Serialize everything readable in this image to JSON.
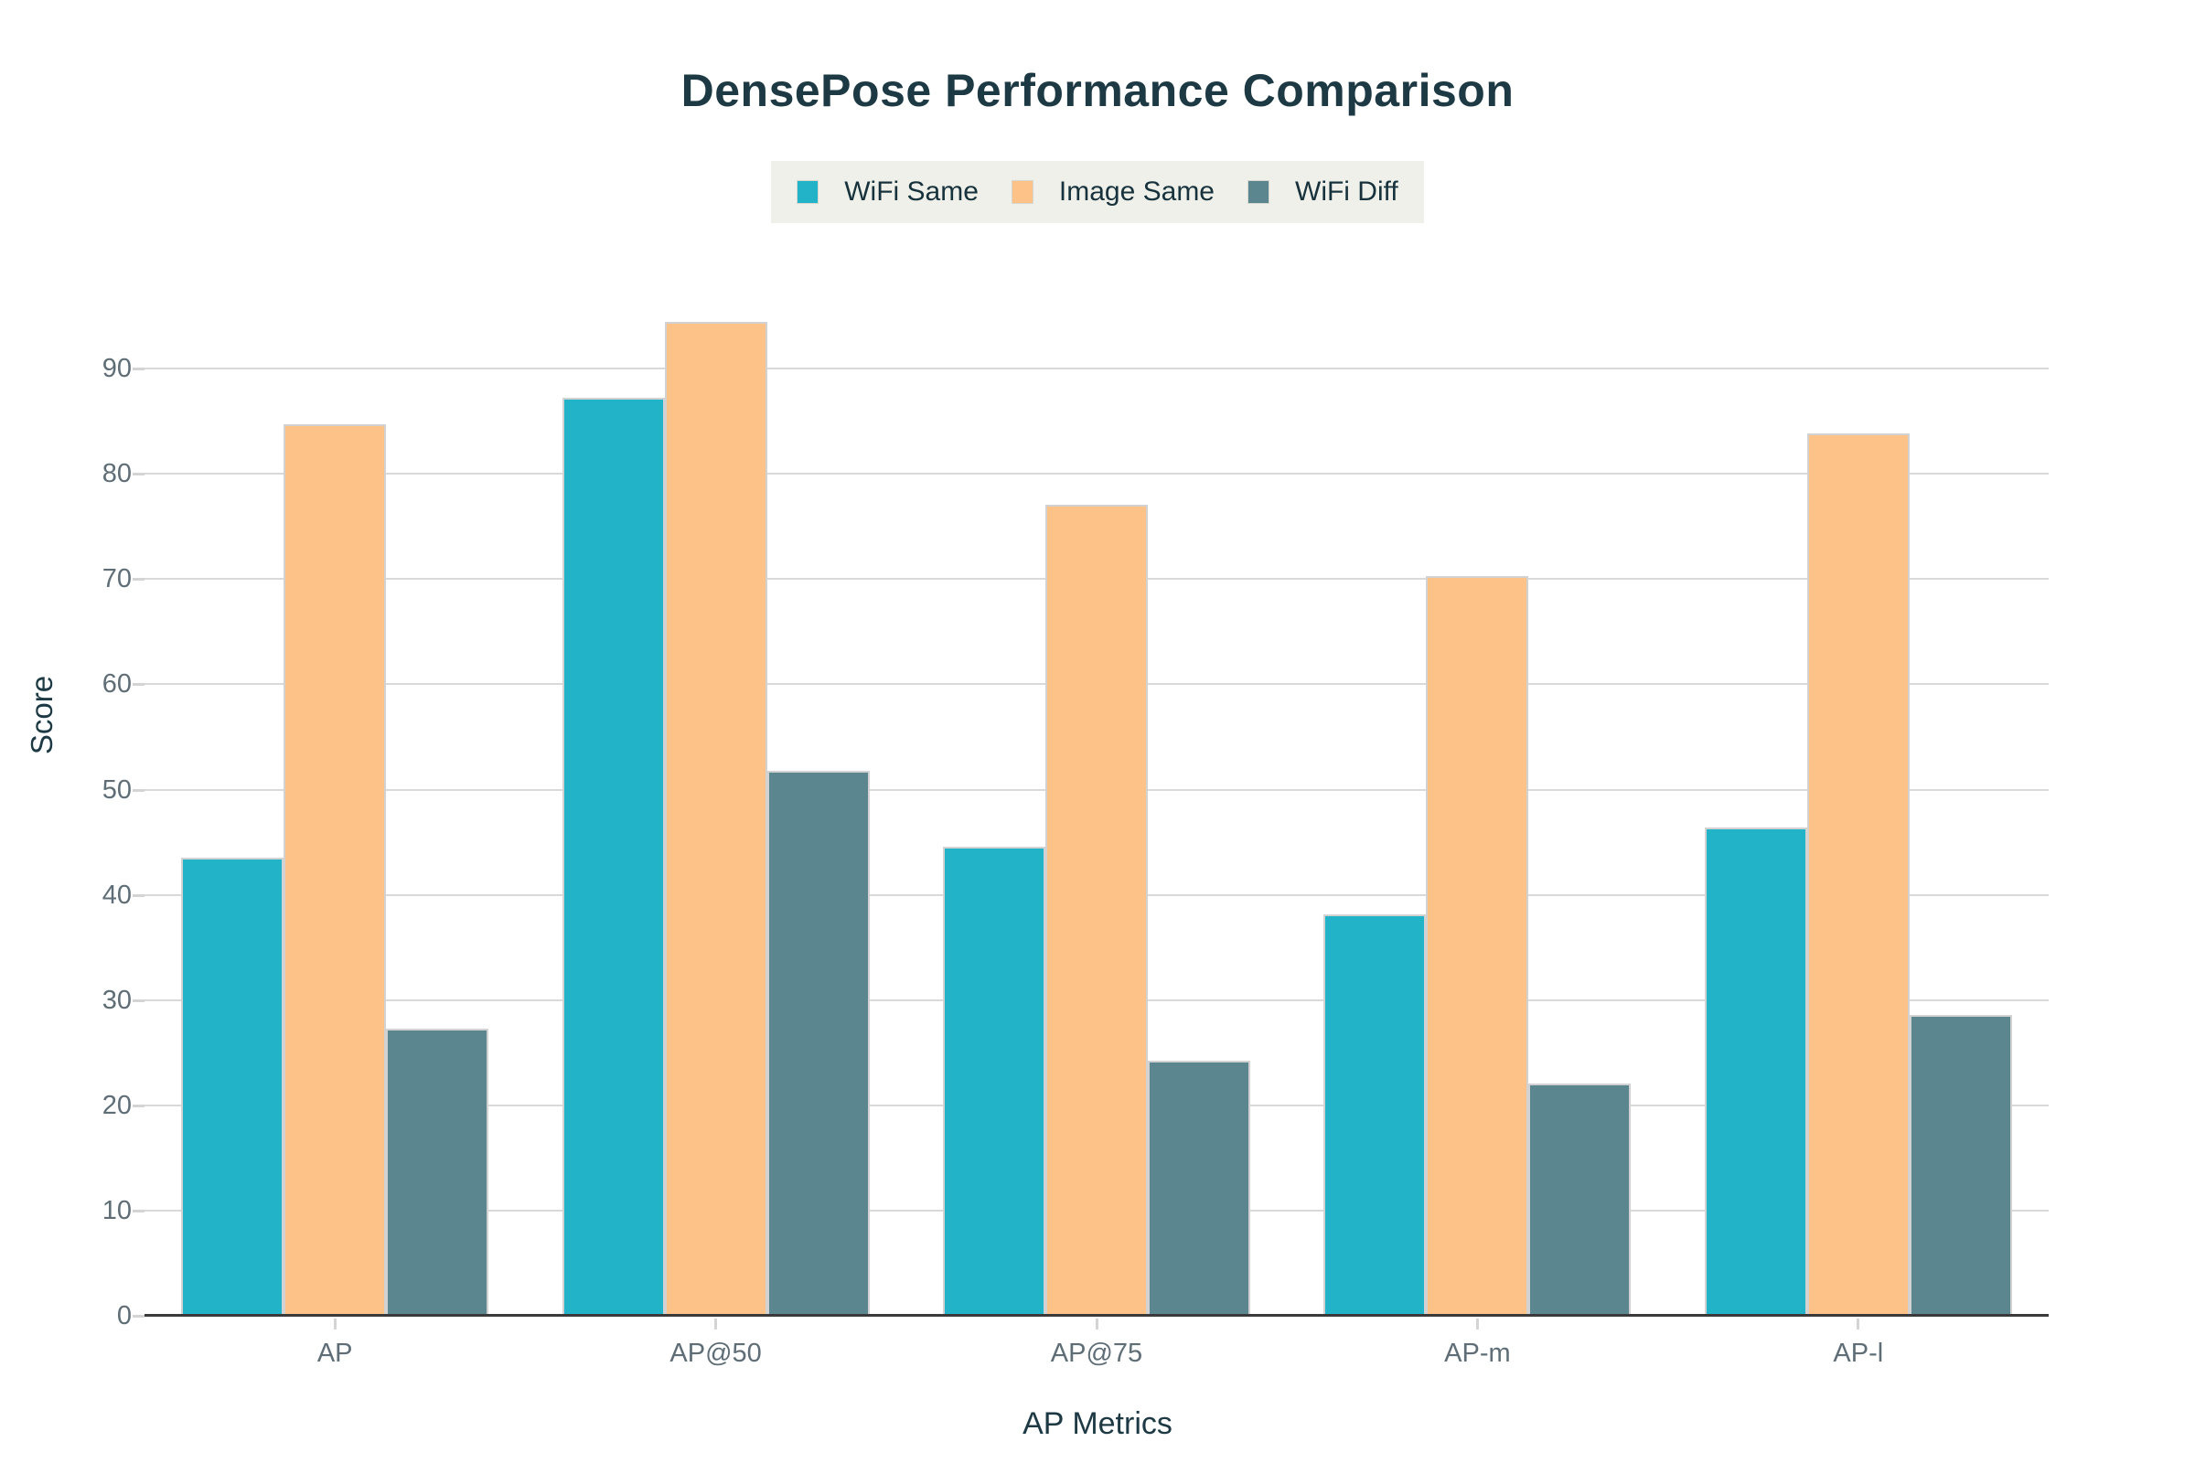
{
  "title": "DensePose Performance Comparison",
  "axes": {
    "x_title": "AP Metrics",
    "y_title": "Score"
  },
  "legend": {
    "items": [
      "WiFi Same",
      "Image Same",
      "WiFi Diff"
    ]
  },
  "colors": {
    "wifi_same": "#22b3c9",
    "image_same": "#fdc288",
    "wifi_diff": "#5b858f",
    "title_text": "#1c3944",
    "tick_text": "#5e6d76",
    "gridline": "#d9d9d9",
    "axis_line": "#3a3a3a",
    "legend_bg": "#eef0e9",
    "bar_border": "#d2d2d2"
  },
  "chart_data": {
    "type": "bar",
    "categories": [
      "AP",
      "AP@50",
      "AP@75",
      "AP-m",
      "AP-l"
    ],
    "series": [
      {
        "name": "WiFi Same",
        "color": "#22b3c9",
        "values": [
          43.5,
          87.2,
          44.6,
          38.1,
          46.4
        ]
      },
      {
        "name": "Image Same",
        "color": "#fdc288",
        "values": [
          84.7,
          94.4,
          77.1,
          70.3,
          83.8
        ]
      },
      {
        "name": "WiFi Diff",
        "color": "#5b858f",
        "values": [
          27.3,
          51.8,
          24.2,
          22.1,
          28.6
        ]
      }
    ],
    "title": "DensePose Performance Comparison",
    "xlabel": "AP Metrics",
    "ylabel": "Score",
    "ylim": [
      0,
      95
    ],
    "yticks": [
      0,
      10,
      20,
      30,
      40,
      50,
      60,
      70,
      80,
      90
    ],
    "grid": true,
    "legend_position": "top-center"
  }
}
